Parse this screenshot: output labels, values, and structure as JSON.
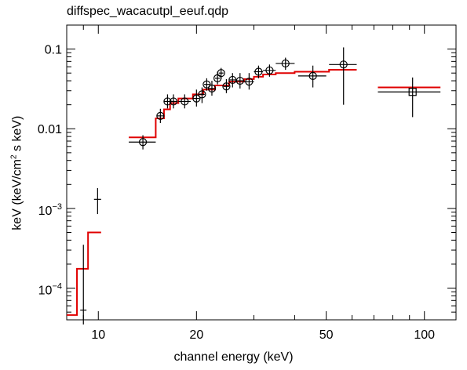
{
  "chart_data": {
    "type": "scatter",
    "title": "diffspec_wacacutpl_eeuf.qdp",
    "xlabel": "channel energy (keV)",
    "ylabel_parts": [
      "keV (keV/cm",
      "2",
      " s keV)"
    ],
    "xscale": "log",
    "yscale": "log",
    "xlim": [
      8.0,
      125.0
    ],
    "ylim": [
      4e-05,
      0.2
    ],
    "xticks": [
      {
        "value": 10,
        "label": "10"
      },
      {
        "value": 20,
        "label": "20"
      },
      {
        "value": 50,
        "label": "50"
      },
      {
        "value": 100,
        "label": "100"
      }
    ],
    "yticks": [
      {
        "value": 0.0001,
        "label_base": "10",
        "label_exp": "−4"
      },
      {
        "value": 0.001,
        "label_base": "10",
        "label_exp": "−3"
      },
      {
        "value": 0.01,
        "label": "0.01"
      },
      {
        "value": 0.1,
        "label": "0.1"
      }
    ],
    "data_points": [
      {
        "x": 9.0,
        "xlo": 8.8,
        "xhi": 9.2,
        "y": 5.3e-05,
        "ylo": 3.5e-05,
        "yhi": 0.00035,
        "marker": "none"
      },
      {
        "x": 9.95,
        "xlo": 9.7,
        "xhi": 10.2,
        "y": 0.0013,
        "ylo": 0.00085,
        "yhi": 0.0018,
        "marker": "none"
      },
      {
        "x": 13.7,
        "xlo": 12.4,
        "xhi": 15.0,
        "y": 0.0068,
        "ylo": 0.0055,
        "yhi": 0.0083,
        "marker": "circle"
      },
      {
        "x": 15.5,
        "xlo": 15.1,
        "xhi": 15.9,
        "y": 0.0145,
        "ylo": 0.0118,
        "yhi": 0.0178,
        "marker": "circle"
      },
      {
        "x": 16.3,
        "xlo": 15.9,
        "xhi": 16.7,
        "y": 0.022,
        "ylo": 0.018,
        "yhi": 0.027,
        "marker": "circle"
      },
      {
        "x": 17.0,
        "xlo": 16.6,
        "xhi": 17.5,
        "y": 0.022,
        "ylo": 0.018,
        "yhi": 0.027,
        "marker": "circle"
      },
      {
        "x": 18.4,
        "xlo": 17.6,
        "xhi": 19.2,
        "y": 0.022,
        "ylo": 0.018,
        "yhi": 0.027,
        "marker": "circle"
      },
      {
        "x": 20.0,
        "xlo": 19.5,
        "xhi": 20.4,
        "y": 0.024,
        "ylo": 0.019,
        "yhi": 0.031,
        "marker": "circle"
      },
      {
        "x": 20.8,
        "xlo": 20.4,
        "xhi": 21.2,
        "y": 0.027,
        "ylo": 0.021,
        "yhi": 0.033,
        "marker": "circle"
      },
      {
        "x": 21.5,
        "xlo": 21.1,
        "xhi": 22.0,
        "y": 0.036,
        "ylo": 0.03,
        "yhi": 0.043,
        "marker": "circle"
      },
      {
        "x": 22.3,
        "xlo": 21.8,
        "xhi": 22.8,
        "y": 0.032,
        "ylo": 0.026,
        "yhi": 0.04,
        "marker": "circle"
      },
      {
        "x": 23.2,
        "xlo": 22.8,
        "xhi": 23.6,
        "y": 0.043,
        "ylo": 0.036,
        "yhi": 0.052,
        "marker": "circle"
      },
      {
        "x": 23.8,
        "xlo": 23.4,
        "xhi": 24.2,
        "y": 0.05,
        "ylo": 0.042,
        "yhi": 0.058,
        "marker": "circle"
      },
      {
        "x": 24.7,
        "xlo": 24.2,
        "xhi": 25.2,
        "y": 0.034,
        "ylo": 0.028,
        "yhi": 0.042,
        "marker": "circle"
      },
      {
        "x": 25.8,
        "xlo": 25.2,
        "xhi": 26.4,
        "y": 0.041,
        "ylo": 0.033,
        "yhi": 0.05,
        "marker": "circle"
      },
      {
        "x": 27.2,
        "xlo": 26.4,
        "xhi": 28.0,
        "y": 0.04,
        "ylo": 0.032,
        "yhi": 0.05,
        "marker": "circle"
      },
      {
        "x": 29.0,
        "xlo": 28.0,
        "xhi": 30.0,
        "y": 0.039,
        "ylo": 0.031,
        "yhi": 0.05,
        "marker": "circle"
      },
      {
        "x": 31.0,
        "xlo": 30.0,
        "xhi": 32.0,
        "y": 0.052,
        "ylo": 0.043,
        "yhi": 0.062,
        "marker": "circle"
      },
      {
        "x": 33.5,
        "xlo": 32.0,
        "xhi": 35.0,
        "y": 0.054,
        "ylo": 0.045,
        "yhi": 0.064,
        "marker": "circle"
      },
      {
        "x": 37.5,
        "xlo": 35.0,
        "xhi": 40.0,
        "y": 0.066,
        "ylo": 0.055,
        "yhi": 0.078,
        "marker": "circle"
      },
      {
        "x": 45.5,
        "xlo": 41.0,
        "xhi": 50.0,
        "y": 0.046,
        "ylo": 0.033,
        "yhi": 0.062,
        "marker": "circle"
      },
      {
        "x": 56.5,
        "xlo": 51.0,
        "xhi": 62.0,
        "y": 0.064,
        "ylo": 0.02,
        "yhi": 0.105,
        "marker": "circle"
      },
      {
        "x": 92.0,
        "xlo": 72.0,
        "xhi": 112.0,
        "y": 0.029,
        "ylo": 0.014,
        "yhi": 0.044,
        "marker": "square"
      }
    ],
    "model_steps": [
      {
        "x0": 8.0,
        "x1": 8.6,
        "y": 4.6e-05
      },
      {
        "x0": 8.6,
        "x1": 9.3,
        "y": 0.000175
      },
      {
        "x0": 9.3,
        "x1": 10.2,
        "y": 0.0005
      },
      {
        "x0": 12.4,
        "x1": 15.0,
        "y": 0.0078
      },
      {
        "x0": 15.0,
        "x1": 15.9,
        "y": 0.0135
      },
      {
        "x0": 15.9,
        "x1": 16.6,
        "y": 0.0175
      },
      {
        "x0": 16.6,
        "x1": 17.6,
        "y": 0.021
      },
      {
        "x0": 17.6,
        "x1": 19.5,
        "y": 0.024
      },
      {
        "x0": 19.5,
        "x1": 21.0,
        "y": 0.027
      },
      {
        "x0": 21.0,
        "x1": 22.8,
        "y": 0.031
      },
      {
        "x0": 22.8,
        "x1": 25.2,
        "y": 0.035
      },
      {
        "x0": 25.2,
        "x1": 28.0,
        "y": 0.039
      },
      {
        "x0": 28.0,
        "x1": 30.0,
        "y": 0.042
      },
      {
        "x0": 30.0,
        "x1": 32.0,
        "y": 0.045
      },
      {
        "x0": 32.0,
        "x1": 35.0,
        "y": 0.048
      },
      {
        "x0": 35.0,
        "x1": 40.0,
        "y": 0.05
      },
      {
        "x0": 40.0,
        "x1": 51.0,
        "y": 0.052
      },
      {
        "x0": 51.0,
        "x1": 62.0,
        "y": 0.055
      },
      {
        "x0": 72.0,
        "x1": 112.0,
        "y": 0.033
      }
    ],
    "colors": {
      "data": "#000000",
      "model": "#e00000",
      "axes": "#000000"
    }
  }
}
